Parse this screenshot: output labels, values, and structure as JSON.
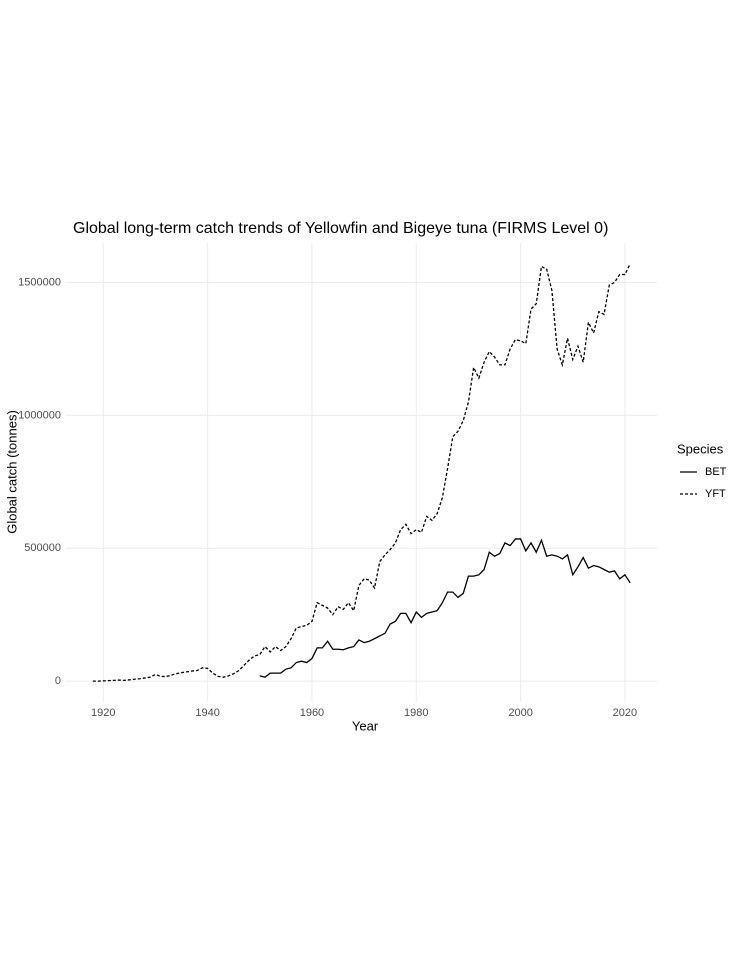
{
  "chart_data": {
    "type": "line",
    "title": "Global long-term catch trends of Yellowfin and Bigeye tuna (FIRMS Level 0)",
    "x_label": "Year",
    "y_label": "Global catch (tonnes)",
    "legend_title": "Species",
    "legend": "right",
    "grid": true,
    "x": [
      1918,
      1919,
      1920,
      1921,
      1922,
      1923,
      1924,
      1925,
      1926,
      1927,
      1928,
      1929,
      1930,
      1931,
      1932,
      1933,
      1934,
      1935,
      1936,
      1937,
      1938,
      1939,
      1940,
      1941,
      1942,
      1943,
      1944,
      1945,
      1946,
      1947,
      1948,
      1949,
      1950,
      1951,
      1952,
      1953,
      1954,
      1955,
      1956,
      1957,
      1958,
      1959,
      1960,
      1961,
      1962,
      1963,
      1964,
      1965,
      1966,
      1967,
      1968,
      1969,
      1970,
      1971,
      1972,
      1973,
      1974,
      1975,
      1976,
      1977,
      1978,
      1979,
      1980,
      1981,
      1982,
      1983,
      1984,
      1985,
      1986,
      1987,
      1988,
      1989,
      1990,
      1991,
      1992,
      1993,
      1994,
      1995,
      1996,
      1997,
      1998,
      1999,
      2000,
      2001,
      2002,
      2003,
      2004,
      2005,
      2006,
      2007,
      2008,
      2009,
      2010,
      2011,
      2012,
      2013,
      2014,
      2015,
      2016,
      2017,
      2018,
      2019,
      2020,
      2021
    ],
    "series": [
      {
        "name": "BET",
        "color": "#000000",
        "linetype": "solid",
        "values": [
          null,
          null,
          null,
          null,
          null,
          null,
          null,
          null,
          null,
          null,
          null,
          null,
          null,
          null,
          null,
          null,
          null,
          null,
          null,
          null,
          null,
          null,
          null,
          null,
          null,
          null,
          null,
          null,
          null,
          null,
          null,
          null,
          20000,
          15000,
          30000,
          30000,
          30000,
          45000,
          50000,
          70000,
          75000,
          70000,
          85000,
          125000,
          125000,
          150000,
          120000,
          120000,
          118000,
          125000,
          130000,
          155000,
          145000,
          150000,
          160000,
          170000,
          180000,
          215000,
          225000,
          255000,
          255000,
          220000,
          260000,
          240000,
          255000,
          260000,
          265000,
          295000,
          335000,
          335000,
          315000,
          330000,
          395000,
          395000,
          400000,
          420000,
          485000,
          470000,
          480000,
          520000,
          510000,
          535000,
          535000,
          490000,
          520000,
          485000,
          530000,
          470000,
          475000,
          470000,
          460000,
          475000,
          400000,
          430000,
          465000,
          425000,
          435000,
          430000,
          420000,
          410000,
          415000,
          385000,
          400000,
          370000
        ]
      },
      {
        "name": "YFT",
        "color": "#000000",
        "linetype": "dashed",
        "values": [
          0,
          0,
          1000,
          2000,
          3000,
          4000,
          3000,
          5000,
          7000,
          9000,
          12000,
          15000,
          25000,
          18000,
          17000,
          22000,
          28000,
          32000,
          35000,
          38000,
          40000,
          50000,
          48000,
          30000,
          18000,
          15000,
          20000,
          28000,
          40000,
          60000,
          80000,
          95000,
          100000,
          130000,
          110000,
          130000,
          115000,
          130000,
          160000,
          200000,
          205000,
          210000,
          225000,
          295000,
          285000,
          275000,
          250000,
          280000,
          270000,
          295000,
          265000,
          360000,
          385000,
          380000,
          350000,
          450000,
          475000,
          495000,
          520000,
          570000,
          590000,
          555000,
          570000,
          560000,
          620000,
          605000,
          630000,
          690000,
          800000,
          920000,
          940000,
          980000,
          1050000,
          1180000,
          1140000,
          1200000,
          1240000,
          1220000,
          1190000,
          1190000,
          1250000,
          1285000,
          1280000,
          1270000,
          1400000,
          1420000,
          1560000,
          1550000,
          1470000,
          1250000,
          1190000,
          1290000,
          1210000,
          1260000,
          1200000,
          1350000,
          1310000,
          1390000,
          1380000,
          1490000,
          1500000,
          1530000,
          1530000,
          1570000
        ]
      }
    ],
    "xlim": [
      1912.85,
      2026.15
    ],
    "xticks": [
      1920,
      1940,
      1960,
      1980,
      2000,
      2020
    ],
    "ylim": [
      -78500,
      1648500
    ],
    "yticks": [
      0,
      500000,
      1000000,
      1500000
    ]
  }
}
